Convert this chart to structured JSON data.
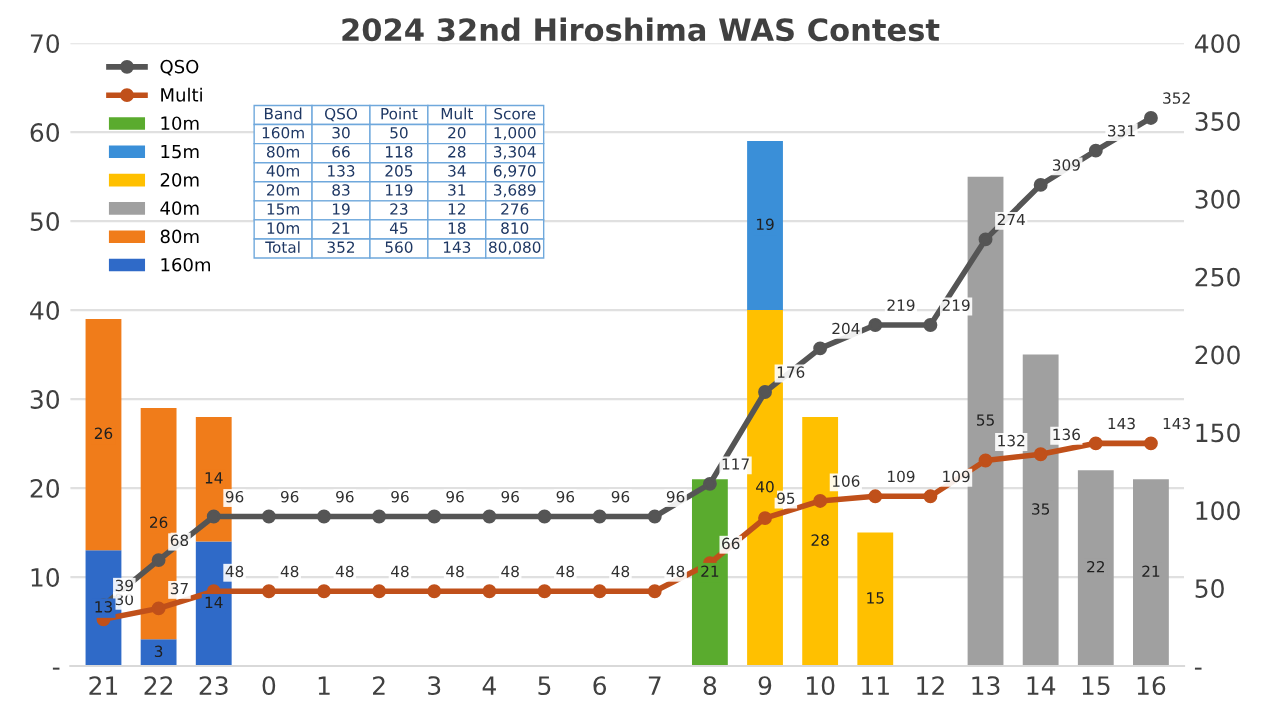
{
  "chart_data": {
    "type": "bar",
    "title": "2024 32nd Hiroshima WAS Contest",
    "stacked": true,
    "data_labels": true,
    "grid": "y",
    "legend": "top left",
    "categories": [
      "21",
      "22",
      "23",
      "0",
      "1",
      "2",
      "3",
      "4",
      "5",
      "6",
      "7",
      "8",
      "9",
      "10",
      "11",
      "12",
      "13",
      "14",
      "15",
      "16"
    ],
    "ylim": [
      0,
      70
    ],
    "yticks": [
      {
        "value": 0,
        "label": "-"
      },
      10,
      20,
      30,
      40,
      50,
      60,
      70
    ],
    "y2lim": [
      0,
      400
    ],
    "y2ticks": [
      {
        "value": 0,
        "label": "-"
      },
      50,
      100,
      150,
      200,
      250,
      300,
      350,
      400
    ],
    "series": [
      {
        "name": "160m",
        "color": "#2f6ac8",
        "values": [
          13,
          3,
          14,
          null,
          null,
          null,
          null,
          null,
          null,
          null,
          null,
          null,
          null,
          null,
          null,
          null,
          null,
          null,
          null,
          null
        ]
      },
      {
        "name": "80m",
        "color": "#f07c1a",
        "values": [
          26,
          26,
          14,
          null,
          null,
          null,
          null,
          null,
          null,
          null,
          null,
          null,
          null,
          null,
          null,
          null,
          null,
          null,
          null,
          null
        ]
      },
      {
        "name": "40m",
        "color": "#a0a0a0",
        "values": [
          null,
          null,
          null,
          null,
          null,
          null,
          null,
          null,
          null,
          null,
          null,
          null,
          null,
          null,
          null,
          null,
          55,
          35,
          22,
          21
        ]
      },
      {
        "name": "20m",
        "color": "#ffc000",
        "values": [
          null,
          null,
          null,
          null,
          null,
          null,
          null,
          null,
          null,
          null,
          null,
          null,
          40,
          28,
          15,
          null,
          null,
          null,
          null,
          null
        ]
      },
      {
        "name": "15m",
        "color": "#3a8fd8",
        "values": [
          null,
          null,
          null,
          null,
          null,
          null,
          null,
          null,
          null,
          null,
          null,
          null,
          19,
          null,
          null,
          null,
          null,
          null,
          null,
          null
        ]
      },
      {
        "name": "10m",
        "color": "#5aab2e",
        "values": [
          null,
          null,
          null,
          null,
          null,
          null,
          null,
          null,
          null,
          null,
          null,
          21,
          null,
          null,
          null,
          null,
          null,
          null,
          null,
          null
        ]
      },
      {
        "name": "Multi",
        "type": "line",
        "axis": "y2",
        "marker": "circle",
        "color": "#c0501a",
        "values": [
          30,
          37,
          48,
          48,
          48,
          48,
          48,
          48,
          48,
          48,
          48,
          66,
          95,
          106,
          109,
          109,
          132,
          136,
          143,
          143
        ]
      },
      {
        "name": "QSO",
        "type": "line",
        "axis": "y2",
        "marker": "circle",
        "color": "#555555",
        "values": [
          39,
          68,
          96,
          96,
          96,
          96,
          96,
          96,
          96,
          96,
          96,
          117,
          176,
          204,
          219,
          219,
          274,
          309,
          331,
          352
        ]
      }
    ],
    "annotations": [
      "Band",
      "QSO",
      "Point",
      "Mult",
      "Score",
      "160m",
      "30",
      "50",
      "20",
      "1,000",
      "80m",
      "66",
      "118",
      "28",
      "3,304",
      "40m",
      "133",
      "205",
      "34",
      "6,970",
      "20m",
      "83",
      "119",
      "31",
      "3,689",
      "15m",
      "19",
      "23",
      "12",
      "276",
      "10m",
      "21",
      "45",
      "18",
      "810",
      "Total",
      "352",
      "560",
      "143",
      "80,080"
    ]
  }
}
